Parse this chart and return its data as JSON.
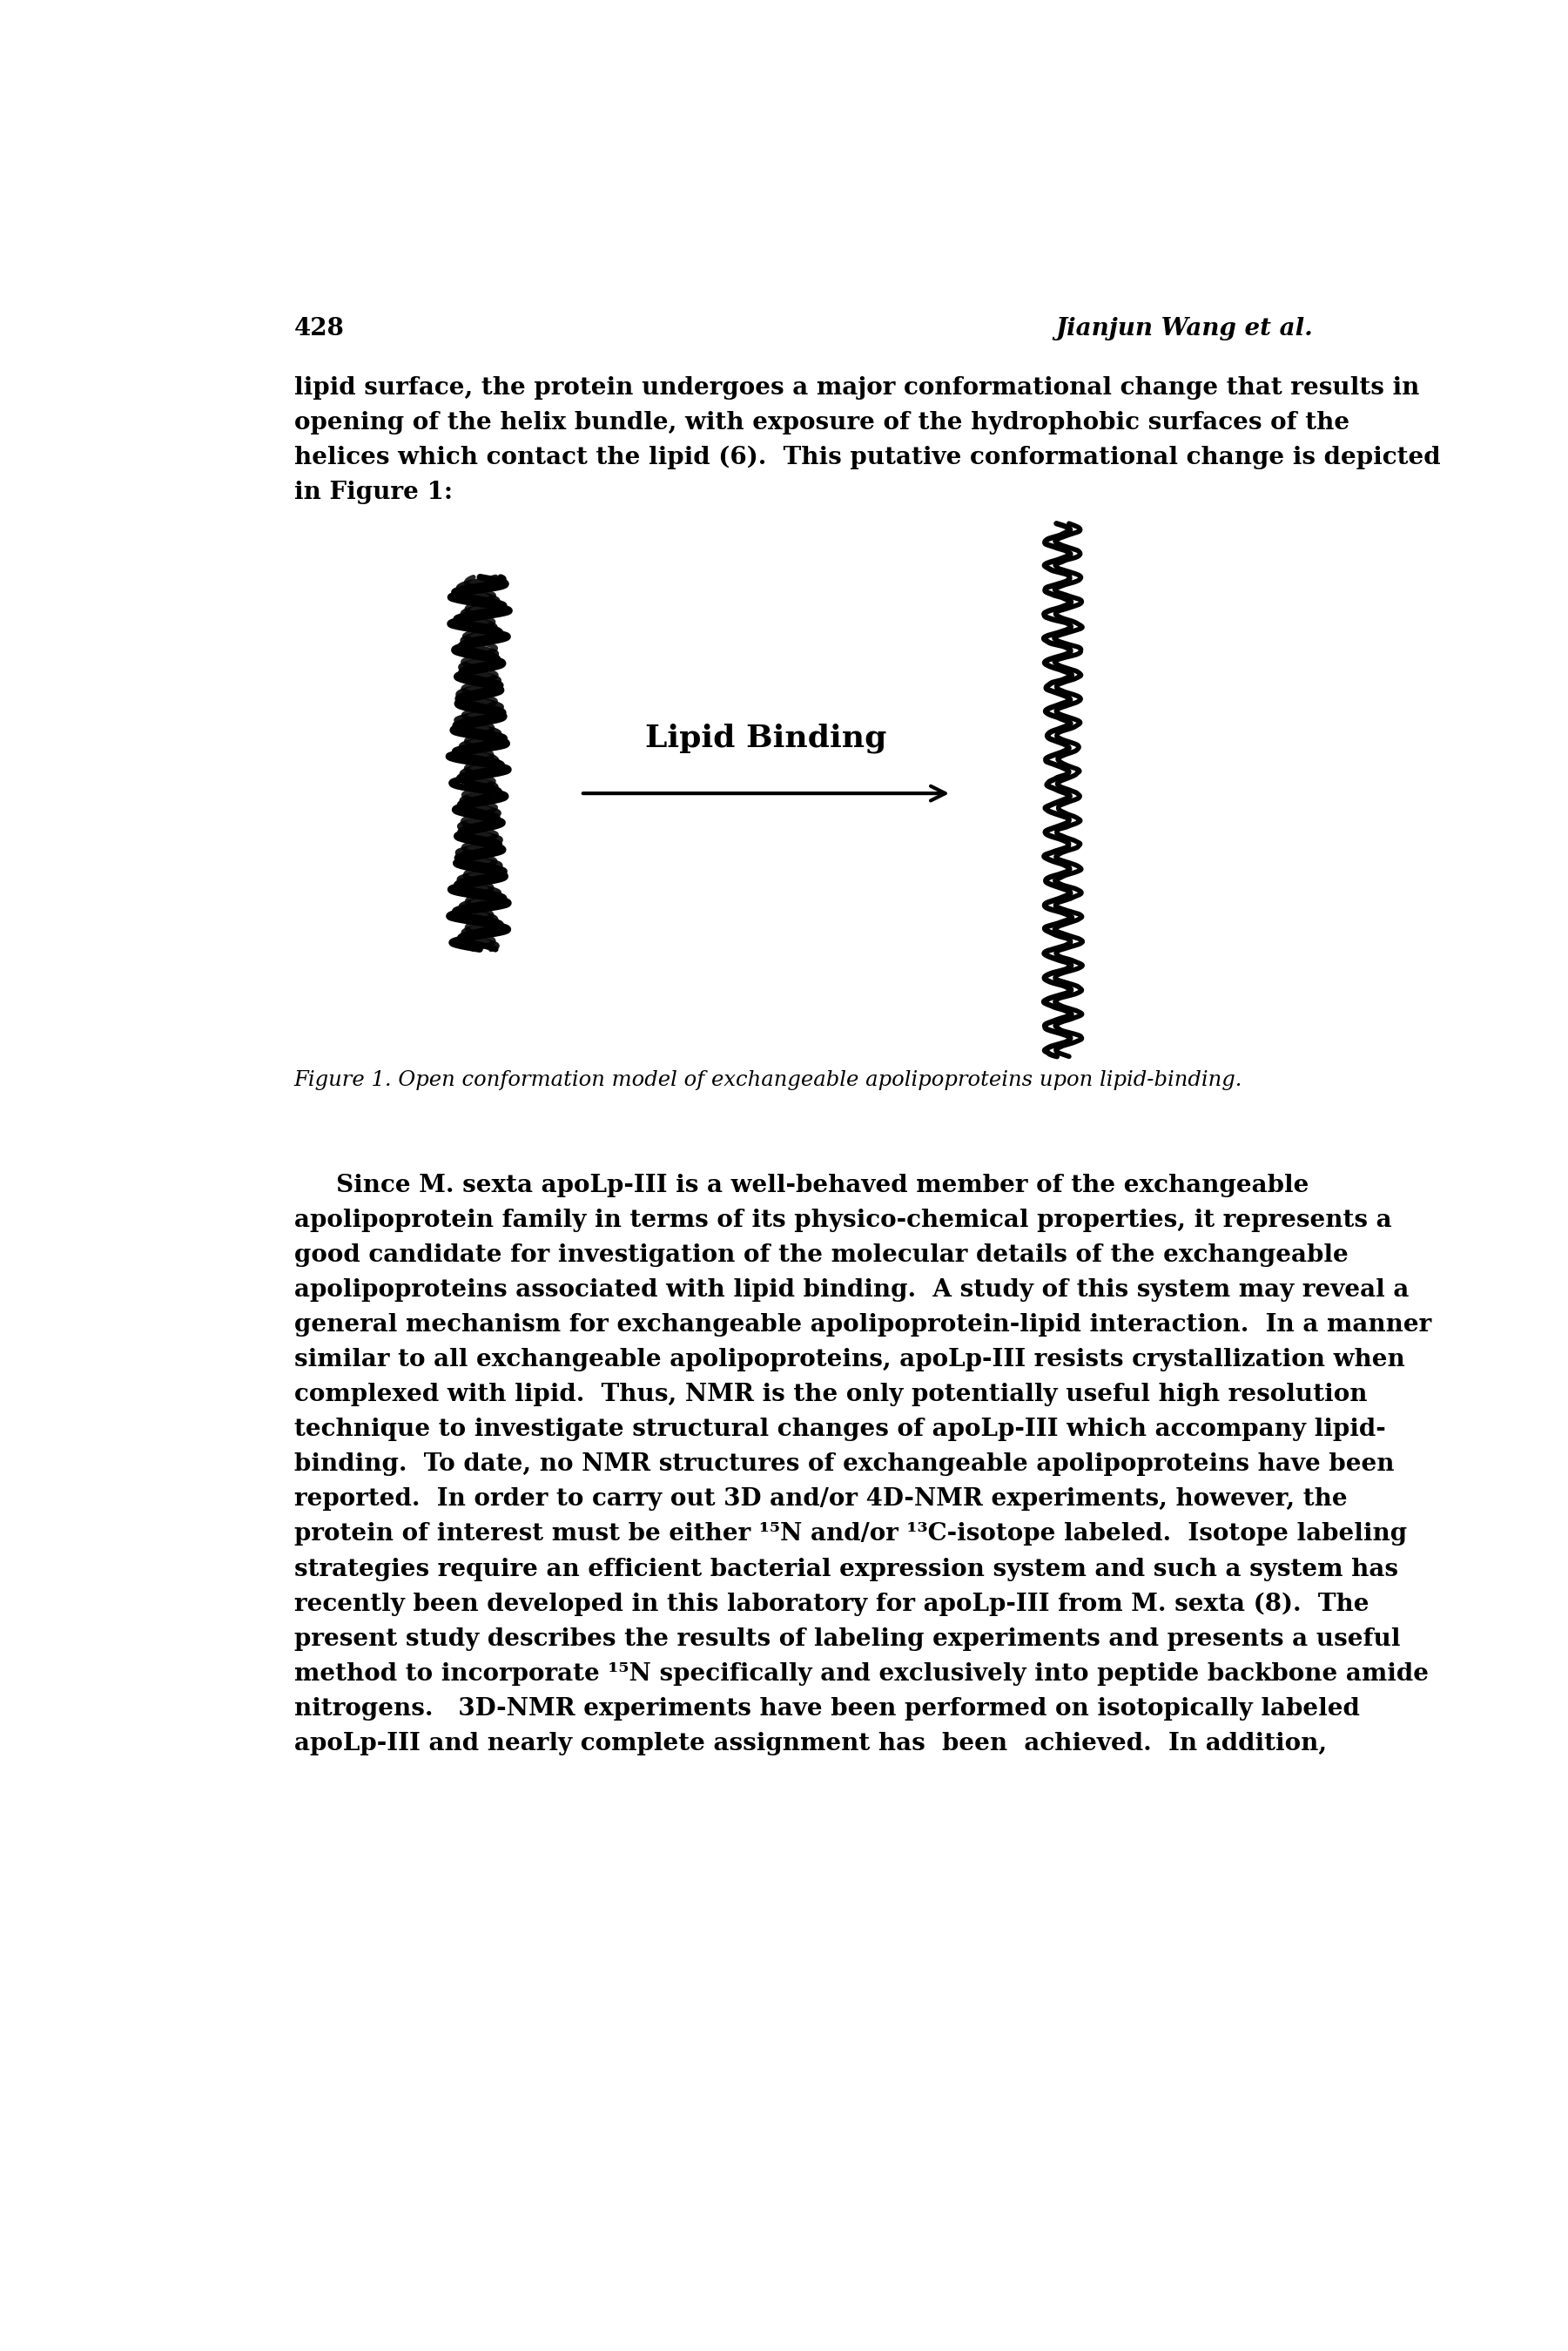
{
  "page_number": "428",
  "header_right": "Jianjun Wang et al.",
  "para1_lines": [
    "lipid surface, the protein undergoes a major conformational change that results in",
    "opening of the helix bundle, with exposure of the hydrophobic surfaces of the",
    "helices which contact the lipid (6).  This putative conformational change is depicted",
    "in Figure 1:"
  ],
  "figure_label": "Lipid Binding",
  "figure_caption": "Figure 1. Open conformation model of exchangeable apolipoproteins upon lipid-binding.",
  "para2_lines": [
    "     Since M. sexta apoLp-III is a well-behaved member of the exchangeable",
    "apolipoprotein family in terms of its physico-chemical properties, it represents a",
    "good candidate for investigation of the molecular details of the exchangeable",
    "apolipoproteins associated with lipid binding.  A study of this system may reveal a",
    "general mechanism for exchangeable apolipoprotein-lipid interaction.  In a manner",
    "similar to all exchangeable apolipoproteins, apoLp-III resists crystallization when",
    "complexed with lipid.  Thus, NMR is the only potentially useful high resolution",
    "technique to investigate structural changes of apoLp-III which accompany lipid-",
    "binding.  To date, no NMR structures of exchangeable apolipoproteins have been",
    "reported.  In order to carry out 3D and/or 4D-NMR experiments, however, the",
    "protein of interest must be either ¹⁵N and/or ¹³C-isotope labeled.  Isotope labeling",
    "strategies require an efficient bacterial expression system and such a system has",
    "recently been developed in this laboratory for apoLp-III from M. sexta (8).  The",
    "present study describes the results of labeling experiments and presents a useful",
    "method to incorporate ¹⁵N specifically and exclusively into peptide backbone amide",
    "nitrogens.   3D-NMR experiments have been performed on isotopically labeled",
    "apoLp-III and nearly complete assignment has  been  achieved.  In addition,"
  ],
  "bg_color": "#ffffff",
  "text_color": "#000000"
}
